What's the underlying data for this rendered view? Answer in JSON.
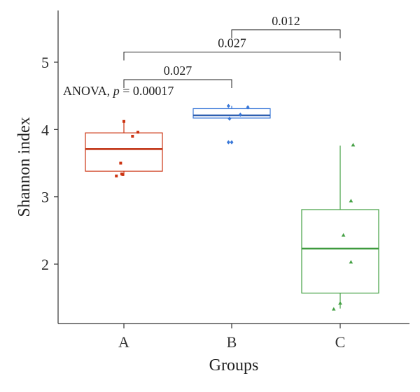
{
  "chart_data": {
    "type": "box",
    "xlabel": "Groups",
    "ylabel": "Shannon index",
    "ylim": [
      1.15,
      5.7
    ],
    "yticks": [
      2,
      3,
      4,
      5
    ],
    "yticks_labels": [
      "2",
      "3",
      "4",
      "5"
    ],
    "categories": [
      "A",
      "B",
      "C"
    ],
    "groups": [
      {
        "name": "A",
        "color": "#cc3311",
        "median_color": "#bb2200",
        "marker": "square",
        "whisker_low": 3.32,
        "q1": 3.38,
        "median": 3.71,
        "q3": 3.95,
        "whisker_high": 4.12,
        "points": [
          {
            "x_offset": -0.07,
            "y": 3.31
          },
          {
            "x_offset": -0.02,
            "y": 3.34
          },
          {
            "x_offset": -0.01,
            "y": 3.33
          },
          {
            "x_offset": -0.03,
            "y": 3.5
          },
          {
            "x_offset": 0.08,
            "y": 3.9
          },
          {
            "x_offset": 0.13,
            "y": 3.96
          },
          {
            "x_offset": 0.0,
            "y": 4.12
          }
        ]
      },
      {
        "name": "B",
        "color": "#3a78d8",
        "median_color": "#2e5fb0",
        "marker": "diamond",
        "whisker_low": 4.17,
        "q1": 4.17,
        "median": 4.21,
        "q3": 4.31,
        "whisker_high": 4.35,
        "points": [
          {
            "x_offset": -0.03,
            "y": 4.35
          },
          {
            "x_offset": 0.15,
            "y": 4.33
          },
          {
            "x_offset": -0.02,
            "y": 4.16
          },
          {
            "x_offset": 0.08,
            "y": 4.22
          },
          {
            "x_offset": -0.03,
            "y": 3.81
          },
          {
            "x_offset": 0.0,
            "y": 3.81
          }
        ]
      },
      {
        "name": "C",
        "color": "#44a044",
        "median_color": "#3e9a3e",
        "marker": "triangle",
        "whisker_low": 1.34,
        "q1": 1.57,
        "median": 2.23,
        "q3": 2.81,
        "whisker_high": 3.76,
        "points": [
          {
            "x_offset": 0.12,
            "y": 3.77
          },
          {
            "x_offset": 0.1,
            "y": 2.94
          },
          {
            "x_offset": 0.03,
            "y": 2.43
          },
          {
            "x_offset": 0.1,
            "y": 2.03
          },
          {
            "x_offset": 0.0,
            "y": 1.42
          },
          {
            "x_offset": -0.06,
            "y": 1.33
          }
        ]
      }
    ],
    "annotations": {
      "anova_label": "ANOVA, ",
      "anova_p": "p",
      "anova_value": " = 0.00017"
    },
    "comparisons": [
      {
        "from": "A",
        "to": "B",
        "label": "0.027",
        "y": 4.74
      },
      {
        "from": "A",
        "to": "C",
        "label": "0.027",
        "y": 5.15
      },
      {
        "from": "B",
        "to": "C",
        "label": "0.012",
        "y": 5.48
      }
    ]
  }
}
